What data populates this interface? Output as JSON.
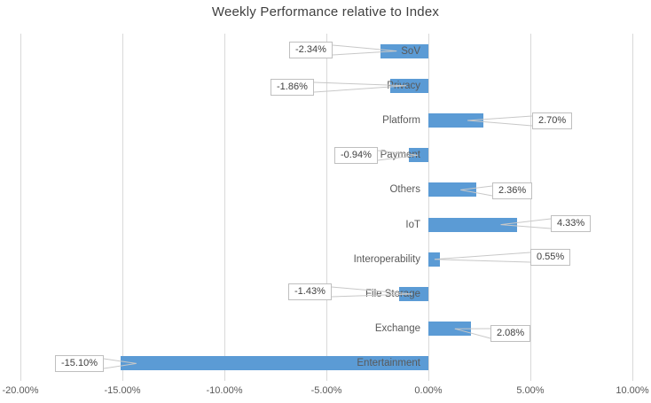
{
  "chart_data": {
    "type": "bar",
    "orientation": "horizontal",
    "title": "Weekly Performance relative to Index",
    "xlabel": "",
    "ylabel": "",
    "categories": [
      "SoV",
      "Privacy",
      "Platform",
      "Payment",
      "Others",
      "IoT",
      "Interoperability",
      "File Storage",
      "Exchange",
      "Entertainment"
    ],
    "values": [
      -2.34,
      -1.86,
      2.7,
      -0.94,
      2.36,
      4.33,
      0.55,
      -1.43,
      2.08,
      -15.1
    ],
    "value_labels": [
      "-2.34%",
      "-1.86%",
      "2.70%",
      "-0.94%",
      "2.36%",
      "4.33%",
      "0.55%",
      "-1.43%",
      "2.08%",
      "-15.10%"
    ],
    "x_ticks": [
      "-20.00%",
      "-15.00%",
      "-10.00%",
      "-5.00%",
      "0.00%",
      "5.00%",
      "10.00%"
    ],
    "x_tick_values": [
      -20,
      -15,
      -10,
      -5,
      0,
      5,
      10
    ],
    "xlim": [
      -20,
      10
    ],
    "grid": "vertical-only",
    "legend": "none",
    "data_labels": "callout-boxes-with-leader-lines",
    "colors": {
      "bar": "#5B9BD5",
      "gridline": "#D9D9D9",
      "leader_line": "#C8C8C8",
      "label_box_border": "#BFBFBF",
      "label_box_fill": "#FFFFFF",
      "axis_text": "#595959",
      "title_text": "#404040"
    }
  }
}
